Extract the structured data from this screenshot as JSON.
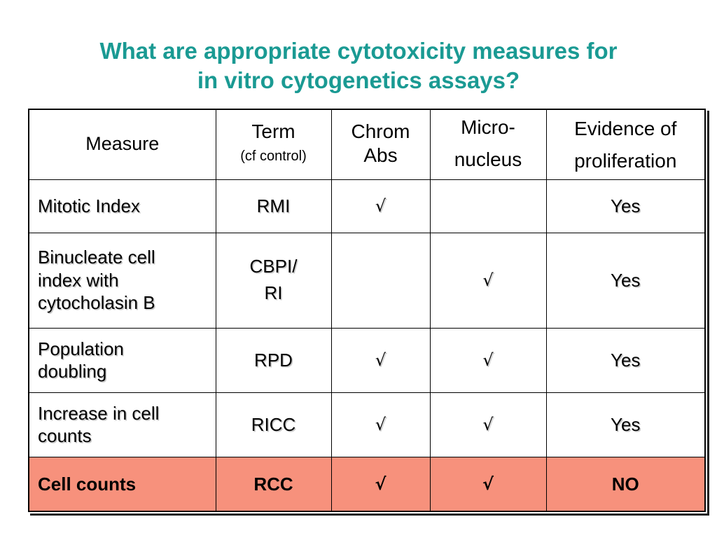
{
  "slide": {
    "title_line1": "What are appropriate cytotoxicity measures for",
    "title_line2": "in vitro cytogenetics assays?",
    "title_color": "#1a9a93",
    "highlight_row_color": "#f7917c"
  },
  "table": {
    "headers": {
      "measure": "Measure",
      "term": "Term",
      "term_sub": "(cf control)",
      "chrom_line1": "Chrom",
      "chrom_line2": "Abs",
      "micro_line1": "Micro-",
      "micro_line2": "nucleus",
      "evidence_line1": "Evidence of",
      "evidence_line2": "proliferation"
    },
    "rows": [
      {
        "measure_lines": [
          "Mitotic Index"
        ],
        "term_lines": [
          "RMI"
        ],
        "chrom_abs": "√",
        "micronucleus": "",
        "evidence": "Yes"
      },
      {
        "measure_lines": [
          "Binucleate cell",
          "index with",
          "cytocholasin B"
        ],
        "term_lines": [
          "CBPI/",
          "RI"
        ],
        "chrom_abs": "",
        "micronucleus": "√",
        "evidence": "Yes"
      },
      {
        "measure_lines": [
          "Population",
          "doubling"
        ],
        "term_lines": [
          "RPD"
        ],
        "chrom_abs": "√",
        "micronucleus": "√",
        "evidence": "Yes"
      },
      {
        "measure_lines": [
          "Increase in cell",
          "counts"
        ],
        "term_lines": [
          "RICC"
        ],
        "chrom_abs": "√",
        "micronucleus": "√",
        "evidence": "Yes"
      },
      {
        "measure_lines": [
          "Cell counts"
        ],
        "term_lines": [
          "RCC"
        ],
        "chrom_abs": "√",
        "micronucleus": "√",
        "evidence": "NO"
      }
    ]
  }
}
